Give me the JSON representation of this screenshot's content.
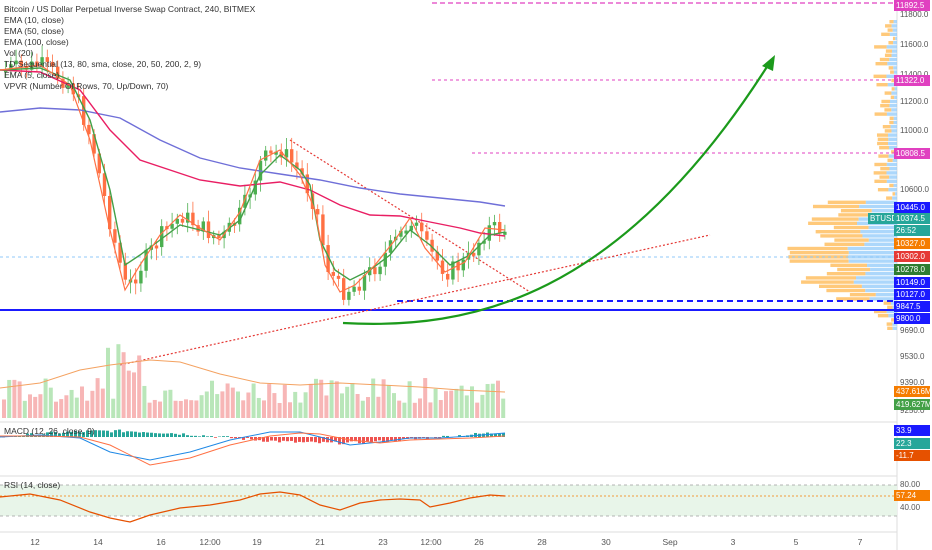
{
  "legend": {
    "title": "Bitcoin / US Dollar Perpetual Inverse Swap Contract, 240, BITMEX",
    "items": [
      "EMA (10, close)",
      "EMA (50, close)",
      "EMA (100, close)",
      "Vol (20)",
      "TD Sequential (13, 80, sma, close, 20, 50, 200, 2, 9)",
      "EMA (5, close)",
      "VPVR (Number Of Rows, 70, Up/Down, 70)"
    ]
  },
  "macd_label": "MACD (12, 26, close, 9)",
  "rsi_label": "RSI (14, close)",
  "price_axis": [
    "11800.0",
    "11600.0",
    "11400.0",
    "11200.0",
    "11000.0",
    "10600.0",
    "9690.0",
    "9530.0",
    "9390.0",
    "9250.0"
  ],
  "price_tags": [
    {
      "text": "11892.5",
      "color": "#e040c0",
      "top": 0
    },
    {
      "text": "11322.0",
      "color": "#e040c0",
      "top": 75
    },
    {
      "text": "10808.5",
      "color": "#e040c0",
      "top": 148
    },
    {
      "text": "10445.0",
      "color": "#1a1aff",
      "top": 202
    },
    {
      "text": "BTUSD",
      "color": "#26a69a",
      "top": 213
    },
    {
      "text": "10374.5",
      "color": "#26a69a",
      "top": 213
    },
    {
      "text": "26:52",
      "color": "#26a69a",
      "top": 225
    },
    {
      "text": "10327.0",
      "color": "#f57c00",
      "top": 238
    },
    {
      "text": "10302.0",
      "color": "#e53935",
      "top": 251
    },
    {
      "text": "10278.0",
      "color": "#2e7d32",
      "top": 264
    },
    {
      "text": "10149.0",
      "color": "#1a1aff",
      "top": 277
    },
    {
      "text": "10127.0",
      "color": "#1a1aff",
      "top": 289
    },
    {
      "text": "9847.5",
      "color": "#1a1aff",
      "top": 301
    },
    {
      "text": "9800.0",
      "color": "#1a1aff",
      "top": 313
    },
    {
      "text": "437.616M",
      "color": "#f57c00",
      "top": 386
    },
    {
      "text": "419.627M",
      "color": "#43a047",
      "top": 399
    },
    {
      "text": "33.9",
      "color": "#1a1aff",
      "top": 425
    },
    {
      "text": "22.3",
      "color": "#26a69a",
      "top": 438
    },
    {
      "text": "-11.7",
      "color": "#e65100",
      "top": 450
    },
    {
      "text": "57.24",
      "color": "#f57c00",
      "top": 490
    }
  ],
  "rsi_axis": [
    "80.00",
    "40.00"
  ],
  "x_axis": [
    {
      "label": "12",
      "x": 35
    },
    {
      "label": "14",
      "x": 98
    },
    {
      "label": "16",
      "x": 161
    },
    {
      "label": "12:00",
      "x": 210
    },
    {
      "label": "19",
      "x": 257
    },
    {
      "label": "21",
      "x": 320
    },
    {
      "label": "23",
      "x": 383
    },
    {
      "label": "12:00",
      "x": 431
    },
    {
      "label": "26",
      "x": 479
    },
    {
      "label": "28",
      "x": 542
    },
    {
      "label": "30",
      "x": 606
    },
    {
      "label": "Sep",
      "x": 670
    },
    {
      "label": "3",
      "x": 733
    },
    {
      "label": "5",
      "x": 796
    },
    {
      "label": "7",
      "x": 860
    }
  ],
  "colors": {
    "up": "#4caf50",
    "down": "#ff7043",
    "ema_green": "#43a047",
    "ema_purple": "#6f6fd8",
    "ema_pink": "#e91e63",
    "ema_orange": "#ff7043",
    "blue": "#1a1aff",
    "magenta": "#e040c0"
  }
}
